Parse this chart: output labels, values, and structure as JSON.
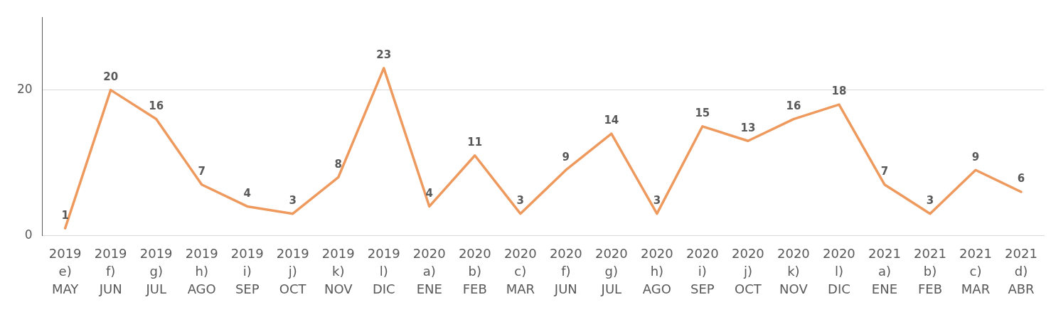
{
  "chart_data": {
    "type": "line",
    "categories": [
      "2019\ne)\nMAY",
      "2019\nf)\nJUN",
      "2019\ng)\nJUL",
      "2019\nh)\nAGO",
      "2019\ni)\nSEP",
      "2019\nj)\nOCT",
      "2019\nk)\nNOV",
      "2019\nl)\nDIC",
      "2020\na)\nENE",
      "2020\nb)\nFEB",
      "2020\nc)\nMAR",
      "2020\nf)\nJUN",
      "2020\ng)\nJUL",
      "2020\nh)\nAGO",
      "2020\ni)\nSEP",
      "2020\nj)\nOCT",
      "2020\nk)\nNOV",
      "2020\nl)\nDIC",
      "2021\na)\nENE",
      "2021\nb)\nFEB",
      "2021\nc)\nMAR",
      "2021\nd)\nABR"
    ],
    "series": [
      {
        "color": "#ee9a5e",
        "values": [
          1,
          20,
          16,
          7,
          4,
          3,
          8,
          23,
          4,
          11,
          3,
          9,
          14,
          3,
          15,
          13,
          16,
          18,
          7,
          3,
          9,
          6
        ]
      }
    ],
    "ylim": [
      0,
      30
    ],
    "yticks": [
      0,
      20
    ],
    "grid": "y",
    "data_labels": true,
    "legend": false,
    "marker": "none",
    "line_style": "solid"
  }
}
